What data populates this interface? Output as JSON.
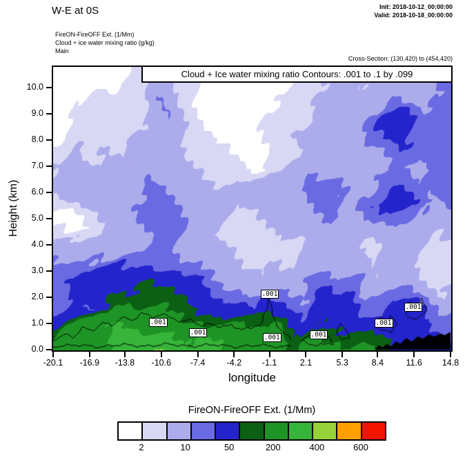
{
  "page": {
    "top_left_title": "W-E at 0S",
    "init_line": "Init: 2018-10-12_00:00:00",
    "valid_line": "Valid: 2018-10-18_00:00:00",
    "meta_lines": [
      "FireON-FireOFF Ext.  (1/Mm)",
      "Cloud + ice water mixing ratio  (g/kg)",
      "Main"
    ],
    "cross_section": "Cross-Section: (130,420) to (454,420)"
  },
  "chart_data": {
    "type": "heatmap",
    "title": "Cloud + Ice water mixing ratio Contours: .001 to .1 by .099",
    "xlabel": "longitude",
    "ylabel": "Height (km)",
    "xlim": [
      -20.1,
      14.8
    ],
    "ylim": [
      0,
      10.8
    ],
    "x_tick_values": [
      -20.1,
      -16.9,
      -13.8,
      -10.6,
      -7.4,
      -4.2,
      -1.1,
      2.1,
      5.3,
      8.4,
      11.6,
      14.8
    ],
    "x_tick_labels": [
      "-20.1",
      "-16.9",
      "-13.8",
      "-10.6",
      "-7.4",
      "-4.2",
      "-1.1",
      "2.1",
      "5.3",
      "8.4",
      "11.6",
      "14.8"
    ],
    "y_tick_values": [
      0,
      1,
      2,
      3,
      4,
      5,
      6,
      7,
      8,
      9,
      10
    ],
    "y_tick_labels": [
      "0.0",
      "1.0",
      "2.0",
      "3.0",
      "4.0",
      "5.0",
      "6.0",
      "7.0",
      "8.0",
      "9.0",
      "10.0"
    ],
    "field_units": "1/Mm",
    "levels": [
      1,
      2,
      5,
      10,
      50,
      100,
      200,
      300,
      400,
      600
    ],
    "colors": [
      "#ffffff",
      "#d8d8f4",
      "#acacec",
      "#6a6ae2",
      "#2424cc",
      "#0b6013",
      "#1f9426",
      "#37b43a",
      "#97d23a",
      "#ffa000",
      "#f31500"
    ],
    "colorbar": {
      "title": "FireON-FireOFF Ext.  (1/Mm)",
      "tick_labels": [
        "2",
        "10",
        "50",
        "200",
        "400",
        "600"
      ]
    },
    "grid": {
      "nx": 30,
      "ny": 16,
      "x0": -20.1,
      "x1": 14.8,
      "y0": 0,
      "y1": 10.8,
      "rows_order": "bottom_to_top",
      "values": [
        [
          120,
          180,
          200,
          160,
          220,
          260,
          240,
          260,
          330,
          260,
          220,
          240,
          200,
          180,
          160,
          140,
          180,
          120,
          80,
          150,
          160,
          120,
          140,
          100,
          60,
          40,
          30,
          20,
          15,
          10
        ],
        [
          30,
          80,
          150,
          130,
          180,
          220,
          200,
          220,
          240,
          220,
          180,
          200,
          160,
          120,
          100,
          80,
          120,
          60,
          30,
          80,
          100,
          60,
          80,
          40,
          30,
          20,
          15,
          10,
          8,
          8
        ],
        [
          8,
          15,
          8,
          10,
          30,
          120,
          160,
          140,
          120,
          80,
          60,
          70,
          40,
          20,
          15,
          10,
          30,
          15,
          8,
          20,
          30,
          15,
          20,
          10,
          8,
          15,
          20,
          8,
          4,
          6
        ],
        [
          6,
          10,
          20,
          30,
          40,
          60,
          80,
          60,
          40,
          30,
          20,
          15,
          10,
          8,
          6,
          4,
          8,
          6,
          4,
          8,
          10,
          6,
          8,
          4,
          6,
          10,
          6,
          3,
          2,
          3
        ],
        [
          6,
          8,
          12,
          20,
          25,
          15,
          10,
          8,
          8,
          7,
          6,
          5,
          4,
          3.5,
          3,
          2.5,
          3,
          2.5,
          2,
          3,
          4,
          3,
          3,
          2,
          3,
          4,
          3,
          2,
          1.5,
          1.5
        ],
        [
          2.5,
          3,
          4,
          6,
          4,
          3,
          4,
          6,
          8,
          6,
          4,
          3,
          2.5,
          2,
          1.5,
          1.5,
          2,
          1.5,
          1.5,
          2.5,
          3,
          2.5,
          2,
          1.5,
          2.5,
          3,
          2.5,
          2,
          1.5,
          1.5
        ],
        [
          1.5,
          0.5,
          0.5,
          1.5,
          2,
          2.5,
          3,
          5,
          7,
          5,
          3,
          2.5,
          2,
          1.5,
          1.5,
          1.5,
          2,
          2.5,
          2,
          2.5,
          3,
          3,
          2.5,
          2,
          3,
          4,
          3,
          2.5,
          2,
          3
        ],
        [
          0.5,
          0.5,
          1.5,
          2,
          2.5,
          3,
          4,
          6,
          8,
          6,
          4,
          3,
          2.5,
          2,
          1.5,
          2,
          2.5,
          3,
          3,
          4,
          5,
          4,
          3,
          3,
          6,
          8,
          6,
          4,
          3,
          4
        ],
        [
          1.5,
          2,
          2.5,
          3,
          3,
          4,
          5,
          7,
          6,
          4,
          3,
          2.5,
          2.5,
          3,
          2.5,
          3,
          3,
          4,
          4,
          6,
          7,
          6,
          4,
          6,
          12,
          20,
          12,
          6,
          4,
          6
        ],
        [
          2,
          2.5,
          3,
          2.5,
          3,
          3,
          4,
          5,
          4,
          3,
          2.5,
          2,
          2,
          2.5,
          2,
          2.5,
          3,
          3,
          4,
          5,
          4,
          4,
          3,
          4,
          8,
          10,
          8,
          5,
          6,
          8
        ],
        [
          1.5,
          2,
          2.5,
          2,
          2.5,
          2,
          2.5,
          3,
          3,
          2.5,
          2,
          1.5,
          1.5,
          1.5,
          0.8,
          0.8,
          1.5,
          1.5,
          2,
          2.5,
          3,
          3.5,
          3,
          3.5,
          4,
          6,
          5,
          4,
          5,
          6
        ],
        [
          0.5,
          1.5,
          2,
          1.5,
          2,
          1.5,
          2,
          2.5,
          2.5,
          2,
          1.5,
          1.5,
          0.8,
          0.8,
          0.5,
          0.5,
          1.5,
          2,
          2.5,
          3,
          4,
          5,
          4,
          5,
          8,
          12,
          8,
          6,
          8,
          10
        ],
        [
          0.5,
          0.8,
          1.5,
          1.5,
          1.5,
          1.5,
          1.5,
          2,
          2.5,
          2,
          1.5,
          0.8,
          0.5,
          0.5,
          0.5,
          0.8,
          1.5,
          1.5,
          2,
          2.5,
          3,
          4,
          3.5,
          4,
          12,
          18,
          10,
          5,
          6,
          8
        ],
        [
          0.3,
          0.5,
          0.8,
          1.5,
          1.5,
          1.5,
          1.5,
          2.5,
          6,
          2.5,
          1.5,
          0.8,
          0.5,
          0.5,
          0.3,
          0.5,
          0.8,
          1.5,
          1.5,
          2,
          2.5,
          3,
          2.5,
          3,
          5,
          6,
          4,
          3,
          5,
          6
        ],
        [
          0.3,
          0.3,
          0.5,
          0.8,
          0.8,
          1.5,
          1.5,
          2,
          4,
          2,
          1.5,
          0.8,
          0.5,
          0.3,
          0.3,
          0.3,
          0.5,
          0.8,
          1.5,
          1.5,
          2,
          2.5,
          2,
          2.5,
          3,
          4,
          3,
          2.5,
          4,
          6
        ],
        [
          0.2,
          0.2,
          0.3,
          0.5,
          0.5,
          0.8,
          1.5,
          1.5,
          2,
          1.5,
          0.8,
          0.5,
          0.3,
          0.3,
          0.2,
          0.2,
          0.3,
          0.5,
          0.8,
          1.5,
          1.5,
          2,
          1.5,
          2,
          2.5,
          3,
          2.5,
          2,
          6,
          12
        ]
      ]
    },
    "terrain": [
      [
        8.2,
        0.02
      ],
      [
        8.5,
        0.18
      ],
      [
        8.8,
        0.08
      ],
      [
        9.2,
        0.22
      ],
      [
        9.6,
        0.12
      ],
      [
        10.0,
        0.32
      ],
      [
        10.4,
        0.22
      ],
      [
        10.9,
        0.45
      ],
      [
        11.4,
        0.3
      ],
      [
        11.9,
        0.5
      ],
      [
        12.4,
        0.42
      ],
      [
        12.9,
        0.58
      ],
      [
        13.4,
        0.5
      ],
      [
        13.9,
        0.62
      ],
      [
        14.3,
        0.55
      ],
      [
        14.8,
        0.68
      ]
    ],
    "cloud_contours": {
      "levels": ".001 to .1 by .099",
      "labels": [
        {
          "x": -10.9,
          "y": 1.02,
          "text": ".001"
        },
        {
          "x": -7.4,
          "y": 0.62,
          "text": ".001"
        },
        {
          "x": -1.1,
          "y": 2.1,
          "text": ".001"
        },
        {
          "x": -0.9,
          "y": 0.45,
          "text": ".001"
        },
        {
          "x": 3.2,
          "y": 0.55,
          "text": ".001"
        },
        {
          "x": 8.9,
          "y": 1.0,
          "text": ".001"
        },
        {
          "x": 11.5,
          "y": 1.6,
          "text": ".001"
        }
      ],
      "polylines": [
        [
          [
            -20.1,
            0.35
          ],
          [
            -19.2,
            0.6
          ],
          [
            -18.4,
            0.45
          ],
          [
            -17.5,
            0.85
          ],
          [
            -16.6,
            0.7
          ],
          [
            -15.8,
            1.05
          ],
          [
            -15,
            0.9
          ],
          [
            -14.1,
            1.25
          ],
          [
            -13.2,
            1.1
          ],
          [
            -12.3,
            1.4
          ],
          [
            -11.4,
            1.25
          ],
          [
            -10.5,
            1.35
          ],
          [
            -9.6,
            1.2
          ],
          [
            -8.8,
            1.05
          ],
          [
            -8,
            1.15
          ],
          [
            -7.1,
            0.9
          ],
          [
            -6.2,
            1.0
          ],
          [
            -5.3,
            0.85
          ],
          [
            -4.4,
            0.95
          ],
          [
            -3.5,
            0.75
          ],
          [
            -2.6,
            0.85
          ],
          [
            -1.8,
            1.0
          ],
          [
            -1.3,
            1.6
          ],
          [
            -1.1,
            2.1
          ],
          [
            -0.9,
            1.5
          ],
          [
            -0.4,
            0.9
          ],
          [
            0.2,
            0.6
          ],
          [
            0.8,
            0.4
          ]
        ],
        [
          [
            -20.1,
            0.12
          ],
          [
            -18,
            0.18
          ],
          [
            -16,
            0.1
          ],
          [
            -14,
            0.2
          ],
          [
            -12,
            0.12
          ],
          [
            -10,
            0.22
          ],
          [
            -8,
            0.12
          ],
          [
            -6,
            0.2
          ],
          [
            -4,
            0.1
          ],
          [
            -2,
            0.18
          ],
          [
            0,
            0.1
          ],
          [
            0.8,
            0.15
          ]
        ],
        [
          [
            1.8,
            0.32
          ],
          [
            2.4,
            0.58
          ],
          [
            3.0,
            0.45
          ],
          [
            3.6,
            0.62
          ],
          [
            4.2,
            0.42
          ],
          [
            4.6,
            0.26
          ],
          [
            3.6,
            0.18
          ],
          [
            2.6,
            0.2
          ],
          [
            1.8,
            0.32
          ]
        ],
        [
          [
            4.8,
            0.6
          ],
          [
            5.1,
            1.0
          ],
          [
            5.6,
            0.75
          ],
          [
            5.9,
            0.45
          ],
          [
            5.3,
            0.35
          ],
          [
            4.8,
            0.6
          ]
        ],
        [
          [
            8.3,
            0.85
          ],
          [
            8.7,
            1.25
          ],
          [
            9.2,
            1.05
          ],
          [
            9.6,
            1.35
          ],
          [
            10.1,
            0.95
          ],
          [
            9.6,
            0.7
          ],
          [
            8.8,
            0.72
          ],
          [
            8.3,
            0.85
          ]
        ],
        [
          [
            10.9,
            1.35
          ],
          [
            11.3,
            1.85
          ],
          [
            11.9,
            1.6
          ],
          [
            12.3,
            1.95
          ],
          [
            12.7,
            1.45
          ],
          [
            12.1,
            1.2
          ],
          [
            11.3,
            1.22
          ],
          [
            10.9,
            1.35
          ]
        ]
      ]
    }
  }
}
